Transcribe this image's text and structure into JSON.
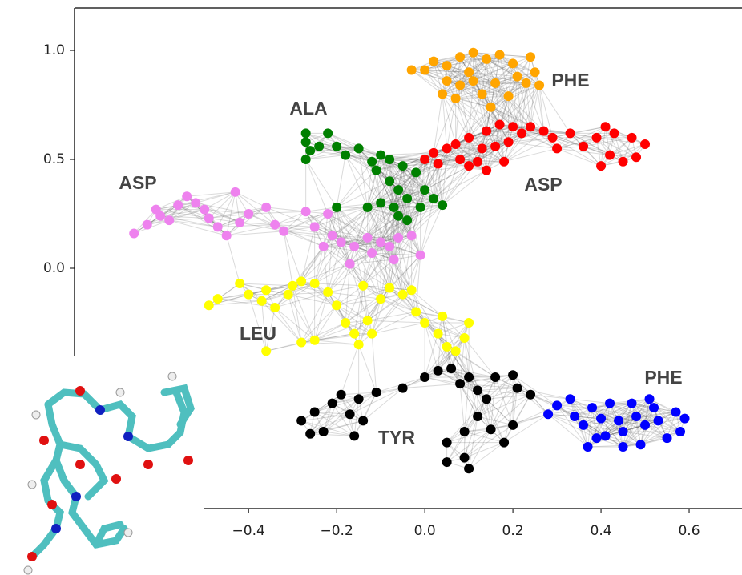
{
  "chart_data": {
    "type": "scatter",
    "xlim": [
      -0.795,
      0.72
    ],
    "ylim": [
      -1.103,
      1.195
    ],
    "xticks": [
      {
        "value": -0.4,
        "label": "−0.4"
      },
      {
        "value": -0.2,
        "label": "−0.2"
      },
      {
        "value": 0,
        "label": "0.0"
      },
      0.2,
      0.4,
      0.6
    ],
    "yticks": [
      {
        "value": 0,
        "label": "0.0"
      },
      {
        "value": 0.5,
        "label": "0.5"
      },
      {
        "value": 1,
        "label": "1.0"
      }
    ],
    "series": [
      {
        "name": "ASP",
        "color": "#ee82ee",
        "x": [
          -0.66,
          -0.63,
          -0.61,
          -0.6,
          -0.58,
          -0.56,
          -0.54,
          -0.52,
          -0.5,
          -0.49,
          -0.47,
          -0.45,
          -0.42,
          -0.4,
          -0.43,
          -0.36,
          -0.34,
          -0.32,
          -0.27,
          -0.25,
          -0.22,
          -0.21,
          -0.19,
          -0.16,
          -0.13,
          -0.12,
          -0.1,
          -0.08,
          -0.06,
          -0.03,
          -0.07,
          -0.01,
          -0.17,
          -0.23
        ],
        "values": [
          0.16,
          0.2,
          0.27,
          0.24,
          0.22,
          0.29,
          0.33,
          0.3,
          0.27,
          0.23,
          0.19,
          0.15,
          0.21,
          0.25,
          0.35,
          0.28,
          0.2,
          0.17,
          0.26,
          0.19,
          0.25,
          0.15,
          0.12,
          0.1,
          0.14,
          0.07,
          0.12,
          0.1,
          0.14,
          0.15,
          0.04,
          0.06,
          0.02,
          0.1
        ]
      },
      {
        "name": "ALA",
        "color": "#008000",
        "x": [
          -0.27,
          -0.27,
          -0.26,
          -0.27,
          -0.22,
          -0.2,
          -0.18,
          -0.15,
          -0.12,
          -0.1,
          -0.08,
          -0.11,
          -0.08,
          -0.06,
          -0.04,
          -0.07,
          -0.1,
          -0.06,
          -0.04,
          -0.01,
          0.0,
          0.02,
          -0.02,
          -0.05,
          -0.2,
          0.04,
          -0.13,
          -0.24
        ],
        "values": [
          0.62,
          0.58,
          0.54,
          0.5,
          0.62,
          0.56,
          0.52,
          0.55,
          0.49,
          0.52,
          0.5,
          0.45,
          0.4,
          0.36,
          0.32,
          0.28,
          0.3,
          0.24,
          0.22,
          0.28,
          0.36,
          0.32,
          0.44,
          0.47,
          0.28,
          0.29,
          0.28,
          0.56
        ]
      },
      {
        "name": "ASP",
        "color": "#ff0000",
        "x": [
          0.0,
          0.02,
          0.05,
          0.07,
          0.08,
          0.1,
          0.12,
          0.13,
          0.1,
          0.14,
          0.17,
          0.2,
          0.22,
          0.19,
          0.16,
          0.24,
          0.27,
          0.29,
          0.33,
          0.36,
          0.39,
          0.42,
          0.4,
          0.45,
          0.41,
          0.43,
          0.47,
          0.5,
          0.48,
          0.18,
          0.14,
          0.03,
          0.3
        ],
        "values": [
          0.5,
          0.53,
          0.55,
          0.57,
          0.5,
          0.47,
          0.49,
          0.55,
          0.6,
          0.63,
          0.66,
          0.65,
          0.62,
          0.58,
          0.56,
          0.65,
          0.63,
          0.6,
          0.62,
          0.56,
          0.6,
          0.52,
          0.47,
          0.49,
          0.65,
          0.62,
          0.6,
          0.57,
          0.51,
          0.49,
          0.45,
          0.48,
          0.55
        ]
      },
      {
        "name": "PHE",
        "color": "#ffa500",
        "x": [
          0.0,
          0.02,
          0.05,
          0.08,
          0.11,
          0.14,
          0.17,
          0.2,
          0.24,
          0.25,
          0.23,
          0.26,
          0.05,
          0.08,
          0.11,
          0.04,
          0.07,
          0.13,
          0.16,
          0.19,
          0.15,
          0.21,
          -0.03,
          0.1
        ],
        "values": [
          0.91,
          0.95,
          0.93,
          0.97,
          0.99,
          0.96,
          0.98,
          0.94,
          0.97,
          0.9,
          0.85,
          0.84,
          0.86,
          0.84,
          0.86,
          0.8,
          0.78,
          0.8,
          0.85,
          0.79,
          0.74,
          0.88,
          0.91,
          0.9
        ]
      },
      {
        "name": "LEU",
        "color": "#ffff00",
        "x": [
          -0.49,
          -0.47,
          -0.42,
          -0.4,
          -0.37,
          -0.36,
          -0.34,
          -0.31,
          -0.3,
          -0.28,
          -0.25,
          -0.22,
          -0.2,
          -0.18,
          -0.16,
          -0.13,
          -0.12,
          -0.1,
          -0.08,
          -0.05,
          -0.03,
          -0.02,
          0.0,
          0.03,
          0.05,
          0.07,
          0.09,
          0.1,
          -0.15,
          -0.25,
          -0.36,
          -0.28,
          -0.14,
          0.04
        ],
        "values": [
          -0.17,
          -0.14,
          -0.07,
          -0.12,
          -0.15,
          -0.1,
          -0.18,
          -0.12,
          -0.08,
          -0.06,
          -0.07,
          -0.11,
          -0.17,
          -0.25,
          -0.3,
          -0.24,
          -0.3,
          -0.14,
          -0.09,
          -0.12,
          -0.1,
          -0.2,
          -0.25,
          -0.3,
          -0.36,
          -0.38,
          -0.32,
          -0.25,
          -0.35,
          -0.33,
          -0.38,
          -0.34,
          -0.08,
          -0.22
        ]
      },
      {
        "name": "TYR",
        "color": "#000000",
        "x": [
          -0.28,
          -0.25,
          -0.23,
          -0.21,
          -0.19,
          -0.17,
          -0.15,
          -0.14,
          -0.16,
          -0.11,
          -0.05,
          0.0,
          0.03,
          0.06,
          0.08,
          0.1,
          0.12,
          0.14,
          0.16,
          0.2,
          0.21,
          0.24,
          0.12,
          0.09,
          0.05,
          0.05,
          0.09,
          0.15,
          0.18,
          0.2,
          0.1,
          -0.26
        ],
        "values": [
          -0.7,
          -0.66,
          -0.75,
          -0.62,
          -0.58,
          -0.67,
          -0.6,
          -0.7,
          -0.77,
          -0.57,
          -0.55,
          -0.5,
          -0.47,
          -0.46,
          -0.53,
          -0.5,
          -0.56,
          -0.6,
          -0.5,
          -0.49,
          -0.55,
          -0.58,
          -0.68,
          -0.75,
          -0.8,
          -0.89,
          -0.87,
          -0.74,
          -0.8,
          -0.72,
          -0.92,
          -0.76
        ]
      },
      {
        "name": "PHE",
        "color": "#0000ff",
        "x": [
          0.28,
          0.3,
          0.33,
          0.34,
          0.36,
          0.38,
          0.39,
          0.4,
          0.42,
          0.44,
          0.45,
          0.47,
          0.48,
          0.49,
          0.5,
          0.52,
          0.53,
          0.55,
          0.57,
          0.59,
          0.58,
          0.41,
          0.45,
          0.37,
          0.51
        ],
        "values": [
          -0.67,
          -0.63,
          -0.6,
          -0.68,
          -0.72,
          -0.64,
          -0.78,
          -0.69,
          -0.62,
          -0.7,
          -0.75,
          -0.62,
          -0.68,
          -0.81,
          -0.72,
          -0.64,
          -0.7,
          -0.78,
          -0.66,
          -0.69,
          -0.75,
          -0.77,
          -0.82,
          -0.82,
          -0.6
        ]
      }
    ]
  }
}
